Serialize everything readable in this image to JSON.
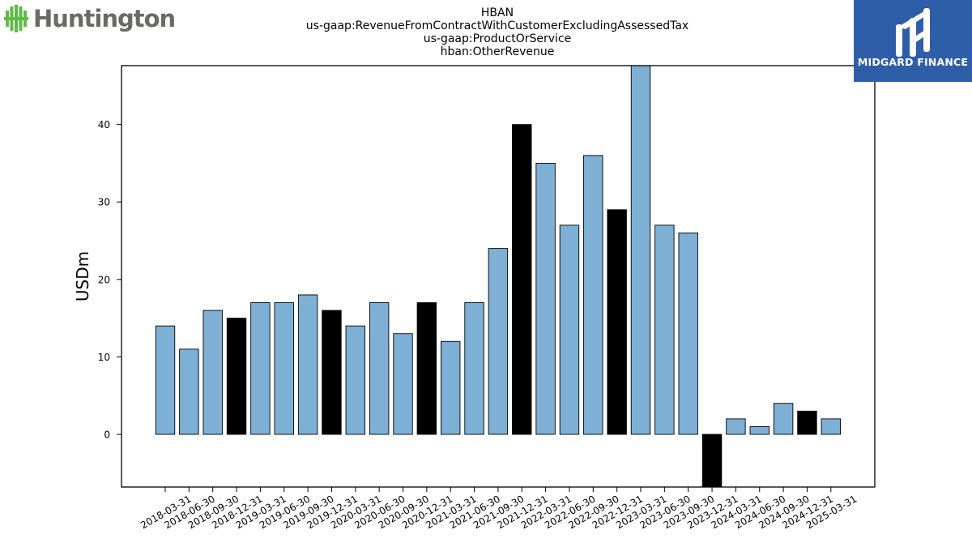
{
  "header": {
    "title_lines": [
      "HBAN",
      "us-gaap:RevenueFromContractWithCustomerExcludingAssessedTax",
      "us-gaap:ProductOrService",
      "hban:OtherRevenue"
    ]
  },
  "logos": {
    "left": {
      "text": "Huntington",
      "icon": "huntington-leaf-icon",
      "color": "#6d6a65",
      "icon_color": "#5dbb46"
    },
    "right": {
      "text": "MIDGARD FINANCE",
      "icon": "midgard-monogram-icon",
      "background": "#2f5ea8"
    }
  },
  "chart_data": {
    "type": "bar",
    "ylabel": "USDm",
    "ylim": [
      -6.8,
      47.6
    ],
    "yticks": [
      0,
      10,
      20,
      30,
      40
    ],
    "categories": [
      "2018-03-31",
      "2018-06-30",
      "2018-09-30",
      "2018-12-31",
      "2019-03-31",
      "2019-06-30",
      "2019-09-30",
      "2019-12-31",
      "2020-03-31",
      "2020-06-30",
      "2020-09-30",
      "2020-12-31",
      "2021-03-31",
      "2021-06-30",
      "2021-09-30",
      "2021-12-31",
      "2022-03-31",
      "2022-06-30",
      "2022-09-30",
      "2022-12-31",
      "2023-03-31",
      "2023-06-30",
      "2023-09-30",
      "2023-12-31",
      "2024-03-31",
      "2024-06-30",
      "2024-09-30",
      "2024-12-31",
      "2025-03-31"
    ],
    "values": [
      14,
      11,
      16,
      15,
      17,
      17,
      18,
      16,
      14,
      17,
      13,
      17,
      12,
      17,
      24,
      40,
      35,
      27,
      36,
      29,
      48,
      27,
      26,
      -7,
      2,
      1,
      4,
      3,
      2
    ],
    "highlight": [
      false,
      false,
      false,
      true,
      false,
      false,
      false,
      true,
      false,
      false,
      false,
      true,
      false,
      false,
      false,
      true,
      false,
      false,
      false,
      true,
      false,
      false,
      false,
      true,
      false,
      false,
      false,
      true,
      false
    ],
    "colors": {
      "bar": "#7eafd4",
      "highlight": "#000000",
      "edge": "#000000"
    },
    "grid": false
  }
}
